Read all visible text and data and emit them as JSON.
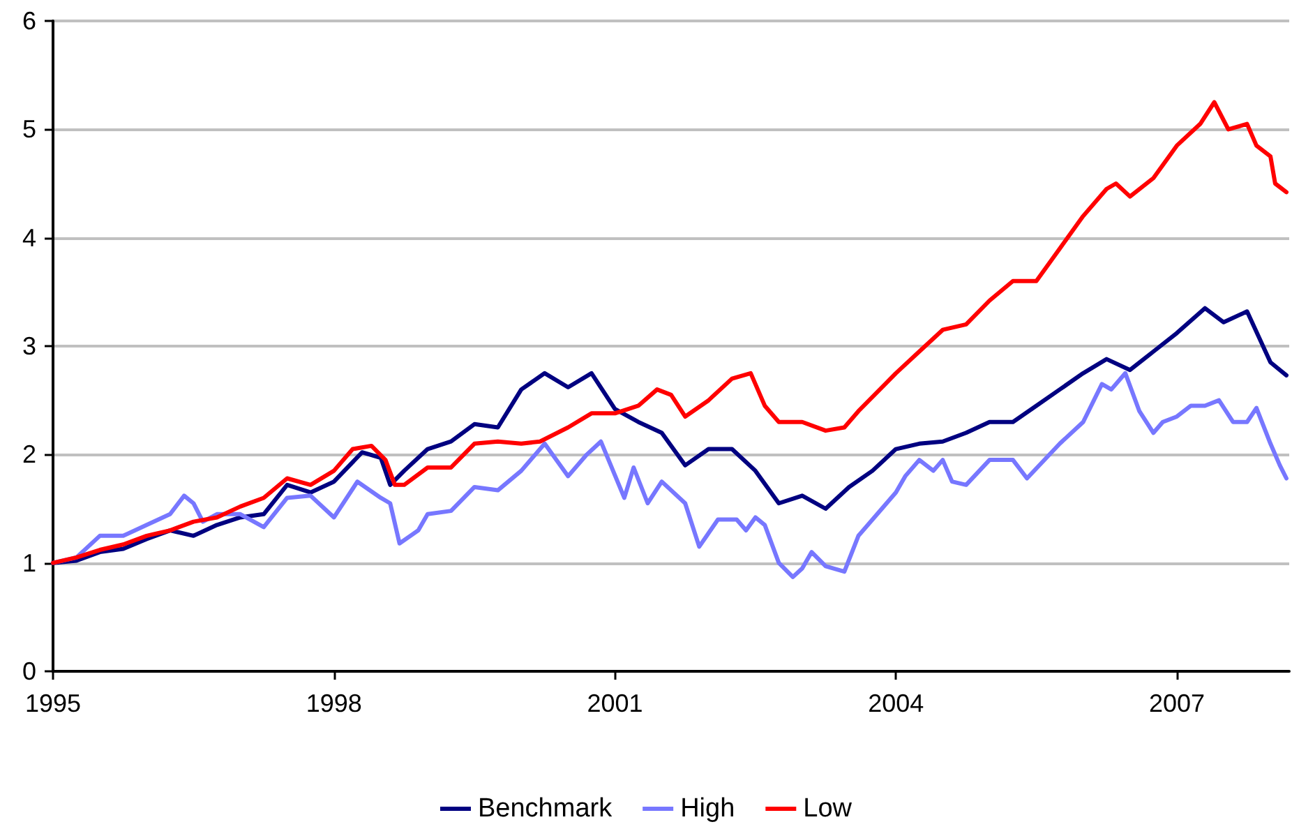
{
  "chart_data": {
    "type": "line",
    "xlim": [
      1995,
      2008.2
    ],
    "xticks": [
      1995,
      1998,
      2001,
      2004,
      2007
    ],
    "ylim": [
      0,
      6
    ],
    "yticks": [
      0,
      1,
      2,
      3,
      4,
      5,
      6
    ],
    "grid": "y",
    "legend": "bottom",
    "marker": "none",
    "line_style": "solid",
    "series": [
      {
        "name": "Benchmark",
        "color": "#000080",
        "x": [
          1995,
          1995.25,
          1995.5,
          1995.75,
          1996,
          1996.25,
          1996.5,
          1996.75,
          1997,
          1997.25,
          1997.5,
          1997.75,
          1998,
          1998.3,
          1998.5,
          1998.6,
          1998.75,
          1999,
          1999.25,
          1999.5,
          1999.75,
          2000,
          2000.25,
          2000.5,
          2000.75,
          2001,
          2001.25,
          2001.5,
          2001.75,
          2002,
          2002.25,
          2002.5,
          2002.75,
          2003,
          2003.25,
          2003.5,
          2003.75,
          2004,
          2004.25,
          2004.5,
          2004.75,
          2005,
          2005.25,
          2005.5,
          2005.75,
          2006,
          2006.25,
          2006.5,
          2006.75,
          2007,
          2007.3,
          2007.5,
          2007.75,
          2008,
          2008.17
        ],
        "values": [
          1.0,
          1.02,
          1.1,
          1.13,
          1.22,
          1.3,
          1.25,
          1.35,
          1.42,
          1.45,
          1.72,
          1.65,
          1.75,
          2.02,
          1.97,
          1.72,
          1.85,
          2.05,
          2.12,
          2.28,
          2.25,
          2.6,
          2.75,
          2.62,
          2.75,
          2.42,
          2.3,
          2.2,
          1.9,
          2.05,
          2.05,
          1.85,
          1.55,
          1.62,
          1.5,
          1.7,
          1.85,
          2.05,
          2.1,
          2.12,
          2.2,
          2.3,
          2.3,
          2.45,
          2.6,
          2.75,
          2.88,
          2.78,
          2.95,
          3.12,
          3.35,
          3.22,
          3.32,
          2.85,
          2.73
        ]
      },
      {
        "name": "High",
        "color": "#7777ff",
        "x": [
          1995,
          1995.25,
          1995.5,
          1995.75,
          1996,
          1996.25,
          1996.4,
          1996.5,
          1996.6,
          1996.75,
          1997,
          1997.25,
          1997.5,
          1997.75,
          1998,
          1998.25,
          1998.5,
          1998.6,
          1998.7,
          1998.9,
          1999,
          1999.25,
          1999.5,
          1999.75,
          2000,
          2000.25,
          2000.5,
          2000.7,
          2000.85,
          2001.1,
          2001.2,
          2001.35,
          2001.5,
          2001.75,
          2001.9,
          2002.1,
          2002.3,
          2002.4,
          2002.5,
          2002.6,
          2002.75,
          2002.9,
          2003,
          2003.1,
          2003.25,
          2003.45,
          2003.6,
          2003.9,
          2004,
          2004.1,
          2004.25,
          2004.4,
          2004.5,
          2004.6,
          2004.75,
          2005,
          2005.25,
          2005.4,
          2005.75,
          2006,
          2006.2,
          2006.3,
          2006.45,
          2006.6,
          2006.75,
          2006.85,
          2007,
          2007.15,
          2007.3,
          2007.45,
          2007.6,
          2007.75,
          2007.85,
          2008,
          2008.1,
          2008.17
        ],
        "values": [
          1.0,
          1.05,
          1.25,
          1.25,
          1.35,
          1.45,
          1.62,
          1.55,
          1.38,
          1.45,
          1.45,
          1.33,
          1.6,
          1.62,
          1.42,
          1.75,
          1.6,
          1.55,
          1.18,
          1.3,
          1.45,
          1.48,
          1.7,
          1.67,
          1.85,
          2.1,
          1.8,
          2.0,
          2.12,
          1.6,
          1.88,
          1.55,
          1.75,
          1.55,
          1.15,
          1.4,
          1.4,
          1.3,
          1.42,
          1.35,
          1.0,
          0.87,
          0.95,
          1.1,
          0.97,
          0.92,
          1.25,
          1.55,
          1.65,
          1.8,
          1.95,
          1.85,
          1.95,
          1.75,
          1.72,
          1.95,
          1.95,
          1.78,
          2.1,
          2.3,
          2.65,
          2.6,
          2.75,
          2.4,
          2.2,
          2.3,
          2.35,
          2.45,
          2.45,
          2.5,
          2.3,
          2.3,
          2.43,
          2.1,
          1.9,
          1.78
        ]
      },
      {
        "name": "Low",
        "color": "#ff0000",
        "x": [
          1995,
          1995.25,
          1995.5,
          1995.75,
          1996,
          1996.25,
          1996.5,
          1996.75,
          1997,
          1997.25,
          1997.5,
          1997.75,
          1998,
          1998.2,
          1998.4,
          1998.55,
          1998.65,
          1998.75,
          1999,
          1999.25,
          1999.5,
          1999.75,
          2000,
          2000.2,
          2000.5,
          2000.75,
          2001,
          2001.25,
          2001.45,
          2001.6,
          2001.75,
          2002,
          2002.25,
          2002.45,
          2002.6,
          2002.75,
          2003,
          2003.25,
          2003.45,
          2003.6,
          2004,
          2004.25,
          2004.5,
          2004.75,
          2005,
          2005.25,
          2005.5,
          2005.75,
          2006,
          2006.25,
          2006.35,
          2006.5,
          2006.75,
          2007,
          2007.25,
          2007.4,
          2007.55,
          2007.75,
          2007.85,
          2008,
          2008.05,
          2008.17
        ],
        "values": [
          1.0,
          1.05,
          1.12,
          1.17,
          1.25,
          1.3,
          1.38,
          1.42,
          1.52,
          1.6,
          1.78,
          1.72,
          1.85,
          2.05,
          2.08,
          1.95,
          1.72,
          1.72,
          1.88,
          1.88,
          2.1,
          2.12,
          2.1,
          2.12,
          2.25,
          2.38,
          2.38,
          2.45,
          2.6,
          2.55,
          2.35,
          2.5,
          2.7,
          2.75,
          2.45,
          2.3,
          2.3,
          2.22,
          2.25,
          2.4,
          2.75,
          2.95,
          3.15,
          3.2,
          3.42,
          3.6,
          3.6,
          3.9,
          4.2,
          4.45,
          4.5,
          4.38,
          4.55,
          4.85,
          5.05,
          5.25,
          5.0,
          5.05,
          4.85,
          4.75,
          4.5,
          4.42
        ]
      }
    ]
  }
}
